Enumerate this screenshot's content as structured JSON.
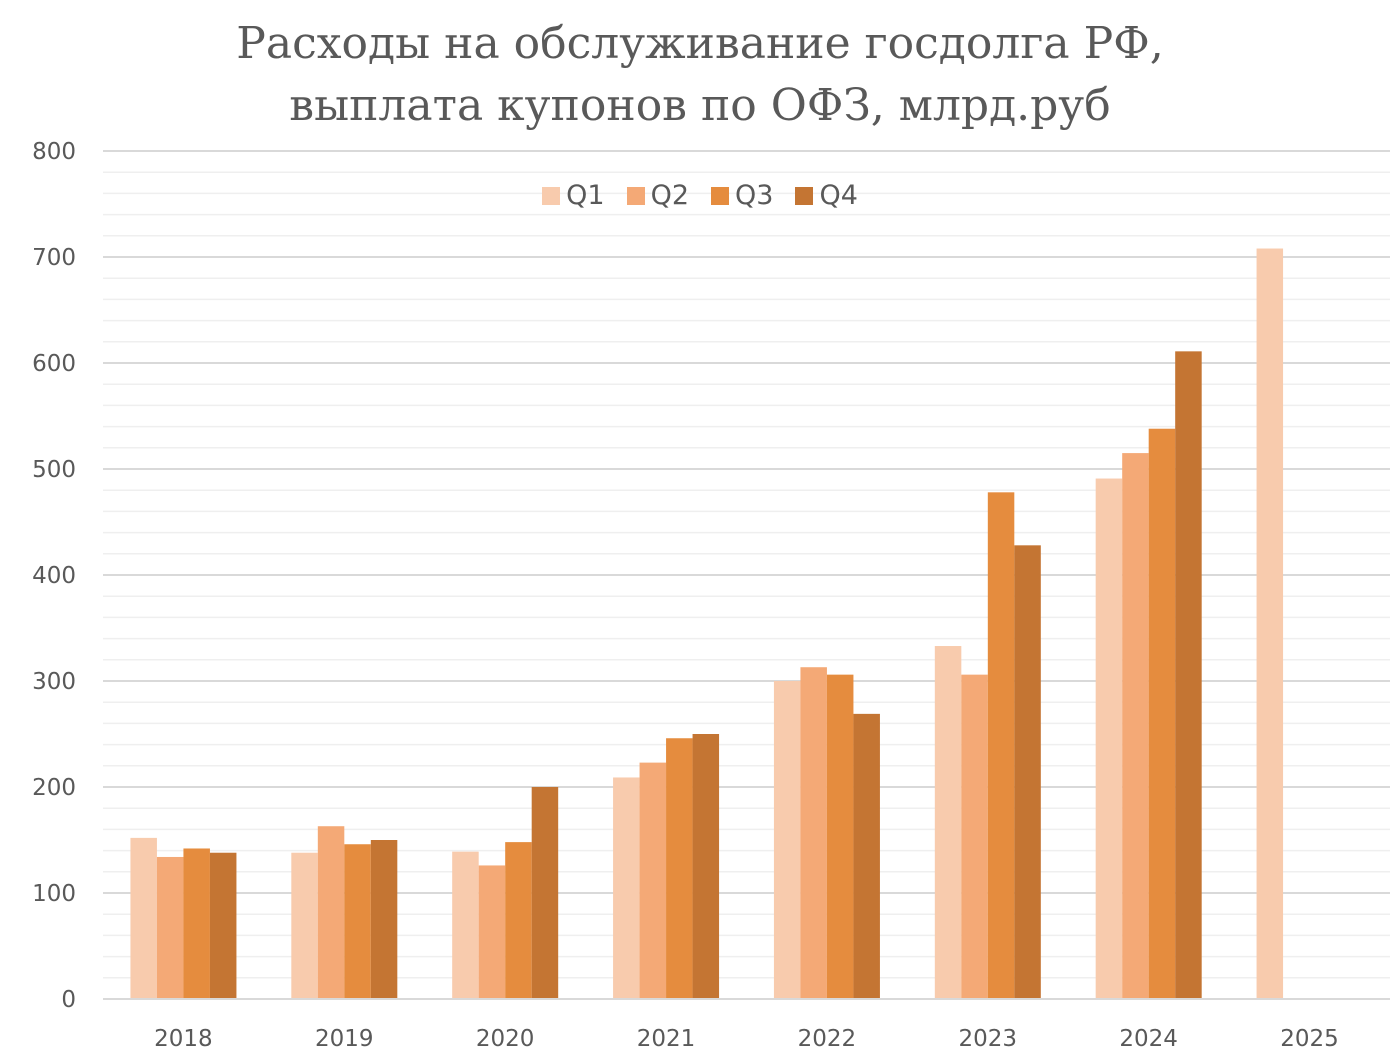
{
  "chart_data": {
    "type": "bar",
    "title": "Расходы на обслуживание госдолга РФ,",
    "subtitle": "выплата купонов по ОФЗ, млрд.руб",
    "categories": [
      "2018",
      "2019",
      "2020",
      "2021",
      "2022",
      "2023",
      "2024",
      "2025"
    ],
    "series": [
      {
        "name": "Q1",
        "color": "#F8CBAD",
        "values": [
          152,
          138,
          139,
          209,
          300,
          333,
          491,
          708
        ]
      },
      {
        "name": "Q2",
        "color": "#F4A976",
        "values": [
          134,
          163,
          126,
          223,
          313,
          306,
          515,
          null
        ]
      },
      {
        "name": "Q3",
        "color": "#E58C3E",
        "values": [
          142,
          146,
          148,
          246,
          306,
          478,
          538,
          null
        ]
      },
      {
        "name": "Q4",
        "color": "#C47533",
        "values": [
          138,
          150,
          200,
          250,
          269,
          428,
          611,
          null
        ]
      }
    ],
    "ylim": [
      0,
      800
    ],
    "yticks": [
      "0",
      "100",
      "200",
      "300",
      "400",
      "500",
      "600",
      "700",
      "800"
    ],
    "grid": true,
    "legend": "top-center"
  }
}
